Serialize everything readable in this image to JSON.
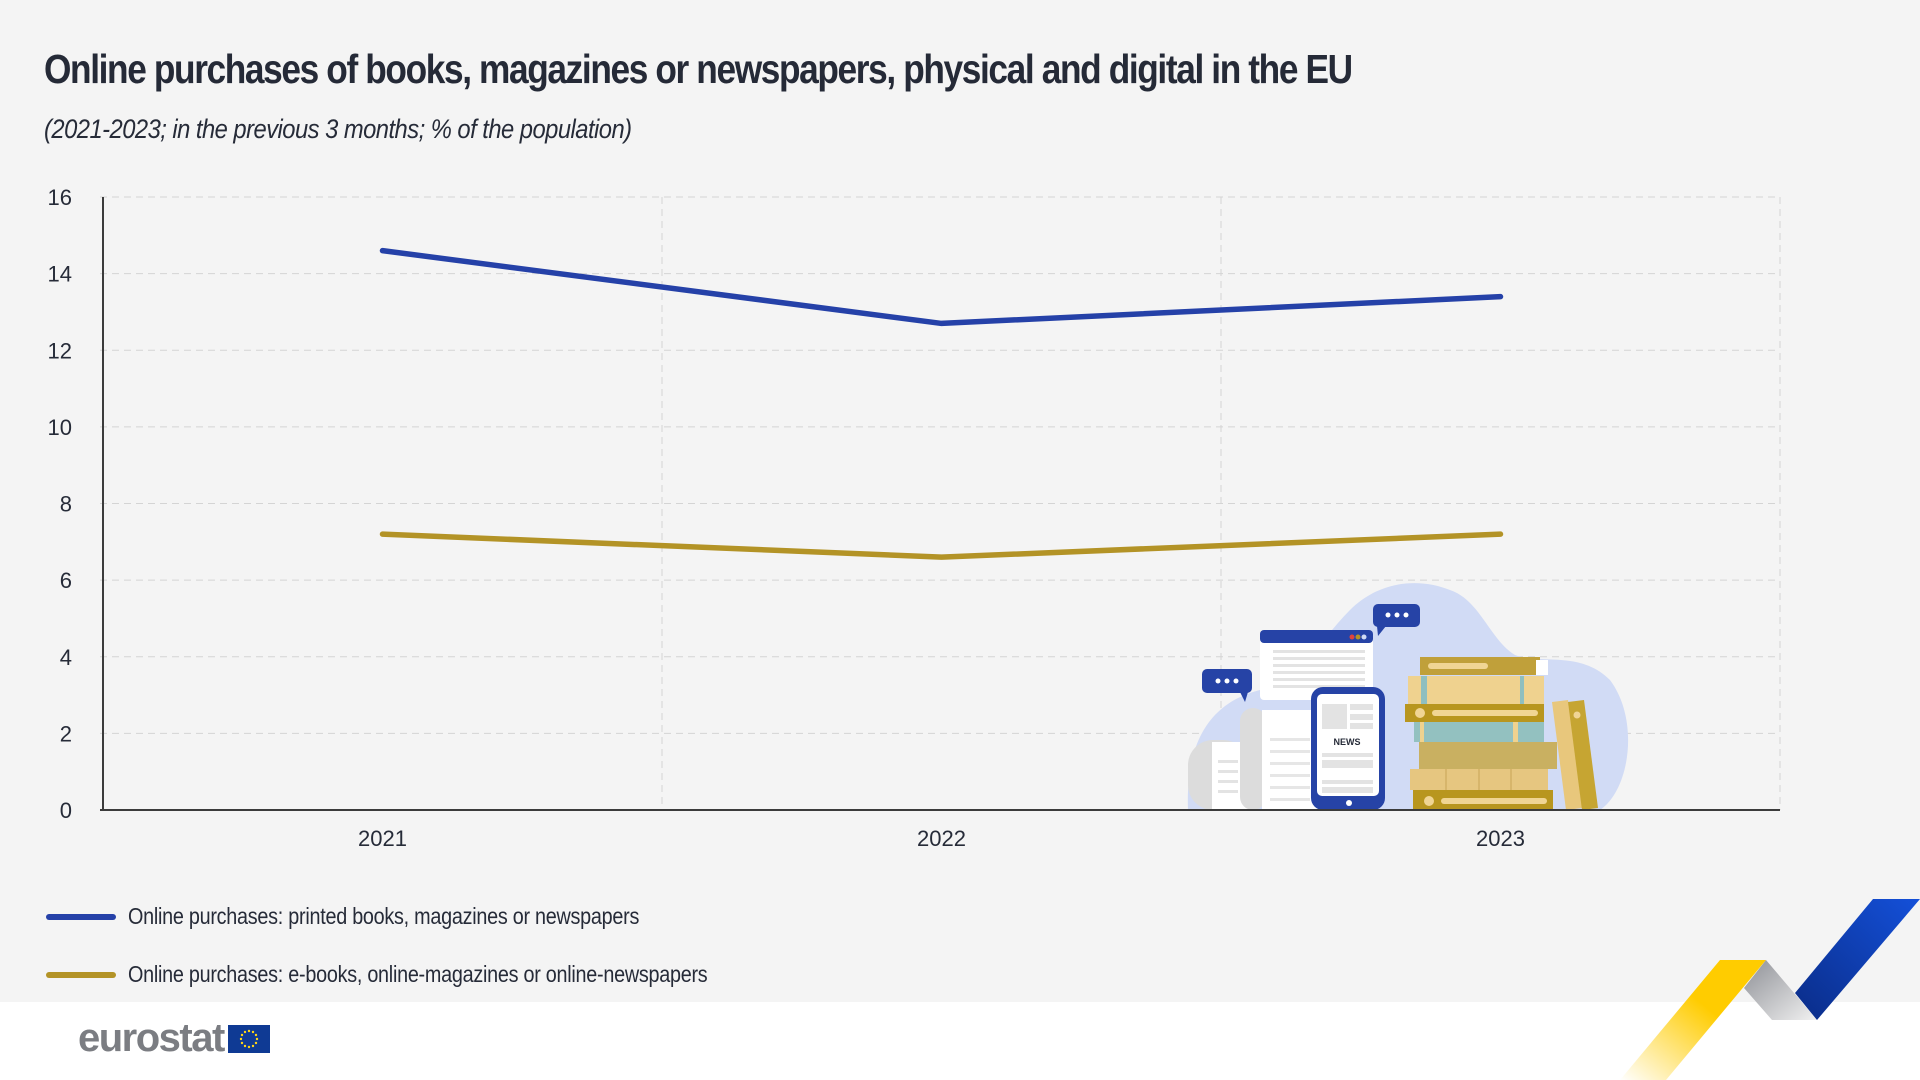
{
  "header": {
    "title": "Online purchases of books, magazines or newspapers, physical and digital in the EU",
    "subtitle": "(2021-2023; in the previous 3 months; % of the population)"
  },
  "colors": {
    "printed": "#2541a8",
    "digital": "#b39326",
    "background": "#f4f4f4",
    "grid": "#d4d4d4",
    "axis": "#3b3b3b"
  },
  "chart_data": {
    "type": "line",
    "title": "Online purchases of books, magazines or newspapers, physical and digital in the EU",
    "subtitle": "(2021-2023; in the previous 3 months; % of the population)",
    "xlabel": "",
    "ylabel": "",
    "categories": [
      "2021",
      "2022",
      "2023"
    ],
    "yticks": [
      "0",
      "2",
      "4",
      "6",
      "8",
      "10",
      "12",
      "14",
      "16"
    ],
    "ylim": [
      0,
      16
    ],
    "grid": true,
    "legend_position": "bottom-left",
    "series": [
      {
        "name": "Online purchases: printed books, magazines or newspapers",
        "color": "#2541a8",
        "values": [
          14.6,
          12.7,
          13.4
        ]
      },
      {
        "name": "Online purchases: e-books, online-magazines or online-newspapers",
        "color": "#b39326",
        "values": [
          7.2,
          6.6,
          7.2
        ]
      }
    ]
  },
  "illustration": {
    "news_label": "NEWS",
    "icons": [
      "newspaper-roll-icon",
      "browser-window-icon",
      "tablet-news-icon",
      "speech-bubble-icon",
      "book-stack-icon"
    ]
  },
  "footer": {
    "logo_text": "eurostat",
    "flag_icon": "eu-flag-icon"
  }
}
